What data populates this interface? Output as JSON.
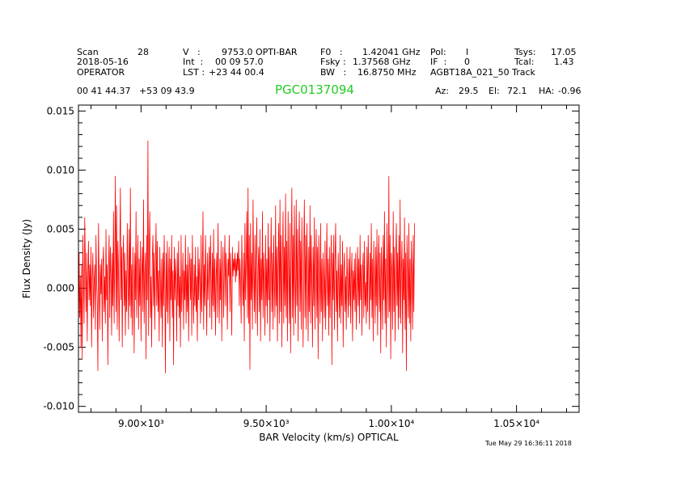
{
  "header": {
    "scan_label": "Scan",
    "scan_value": "28",
    "date": "2018-05-16",
    "operator": "OPERATOR",
    "v_label": "V   :",
    "v_value": "9753.0 OPTI-BAR",
    "int_label": "Int  :",
    "int_value": "00 09 57.0",
    "lst_label": "LST :",
    "lst_value": "+23 44 00.4",
    "f0_label": "F0   :",
    "f0_value": "1.42041 GHz",
    "fsky_label": "Fsky :",
    "fsky_value": "1.37568 GHz",
    "bw_label": "BW   :",
    "bw_value": "16.8750 MHz",
    "pol_label": "Pol:",
    "pol_value": "I",
    "if_label": "IF  :",
    "if_value": "0",
    "project": "AGBT18A_021_50 Track",
    "tsys_label": "Tsys:",
    "tsys_value": "17.05",
    "tcal_label": "Tcal:",
    "tcal_value": "1.43",
    "coords": "00 41 44.37   +53 09 43.9",
    "source": "PGC0137094",
    "az_label": "Az:",
    "az_value": "29.5",
    "el_label": "El:",
    "el_value": "72.1",
    "ha_label": "HA:",
    "ha_value": "-0.96"
  },
  "timestamp": "Tue May 29 16:36:11 2018",
  "chart_data": {
    "type": "line",
    "title": "PGC0137094",
    "xlabel": "BAR Velocity (km/s) OPTICAL",
    "ylabel": "Flux Density (Jy)",
    "xlim": [
      8750,
      10750
    ],
    "ylim": [
      -0.0105,
      0.0155
    ],
    "xticks": [
      9000,
      9500,
      10000,
      10500
    ],
    "xtick_labels": [
      "9.00×10³",
      "9.50×10³",
      "1.00×10⁴",
      "1.05×10⁴"
    ],
    "yticks": [
      -0.01,
      -0.005,
      0.0,
      0.005,
      0.01,
      0.015
    ],
    "ytick_labels": [
      "-0.010",
      "-0.005",
      "0.000",
      "0.005",
      "0.010",
      "0.015"
    ],
    "line_color": "#ff0000",
    "series": [
      {
        "name": "spectrum",
        "x_start": 8750,
        "x_step": 2.5,
        "values": [
          -0.004,
          0.003,
          -0.0025,
          0.001,
          -0.005,
          0.002,
          -0.006,
          0.0045,
          0.001,
          -0.003,
          0.006,
          0.0025,
          -0.002,
          0.003,
          -0.0045,
          0.0005,
          0.004,
          -0.001,
          0.002,
          -0.0015,
          0.0035,
          -0.005,
          0.001,
          0.003,
          -0.0025,
          0.0005,
          0.002,
          -0.0035,
          0.0045,
          0.0005,
          -0.001,
          -0.007,
          0.0055,
          0.001,
          -0.0035,
          0.002,
          -0.0005,
          0.0025,
          -0.0045,
          0.002,
          0.0035,
          -0.002,
          0.001,
          -0.003,
          0.005,
          -0.001,
          0.002,
          -0.0065,
          0.0015,
          0.0045,
          -0.0025,
          0.0035,
          0.001,
          -0.004,
          0.003,
          -0.0015,
          0.0065,
          -0.003,
          0.0025,
          0.0095,
          -0.002,
          0.007,
          -0.0035,
          0.004,
          0.0015,
          -0.0045,
          0.003,
          0.0085,
          -0.001,
          0.0035,
          -0.005,
          0.002,
          0.0045,
          -0.0015,
          0.003,
          -0.004,
          0.0015,
          -0.002,
          0.0055,
          0.001,
          -0.0035,
          0.005,
          -0.0015,
          0.0085,
          -0.0025,
          0.002,
          -0.004,
          0.0035,
          0.0005,
          -0.0055,
          0.003,
          -0.001,
          0.0065,
          -0.0025,
          0.0015,
          0.0045,
          -0.0035,
          0.0025,
          -0.0015,
          0.004,
          -0.0045,
          0.001,
          0.0035,
          -0.002,
          0.0075,
          -0.003,
          0.001,
          0.003,
          -0.006,
          0.0045,
          -0.001,
          0.0125,
          -0.004,
          0.0035,
          0.0065,
          -0.0025,
          0.001,
          -0.005,
          0.0025,
          0.0045,
          -0.0015,
          0.003,
          -0.0035,
          0.002,
          0.0055,
          -0.0015,
          0.004,
          -0.002,
          0.0015,
          -0.0045,
          0.0035,
          0.0005,
          -0.0025,
          0.0025,
          -0.005,
          0.003,
          -0.0015,
          0.0045,
          0.0005,
          -0.0072,
          0.003,
          -0.002,
          0.004,
          -0.003,
          0.001,
          0.0035,
          -0.0045,
          0.0025,
          -0.001,
          0.0045,
          -0.0025,
          0.0015,
          -0.0065,
          0.0035,
          -0.001,
          0.0025,
          0.0005,
          -0.0045,
          0.003,
          -0.0015,
          0.004,
          -0.0025,
          0.001,
          -0.005,
          0.0045,
          -0.002,
          0.0005,
          0.003,
          -0.0035,
          0.0015,
          -0.001,
          0.0045,
          -0.003,
          0.002,
          -0.002,
          0.0035,
          -0.0045,
          0.0015,
          0.003,
          -0.001,
          0.0025,
          -0.004,
          0.0045,
          0.0005,
          -0.003,
          0.002,
          -0.0015,
          0.0035,
          -0.002,
          0.001,
          -0.0045,
          0.0035,
          -0.001,
          0.0025,
          0.0005,
          -0.003,
          0.0045,
          -0.002,
          0.001,
          0.0065,
          -0.0035,
          0.002,
          -0.0015,
          0.0045,
          0.0005,
          -0.004,
          0.003,
          -0.001,
          0.0015,
          0.0035,
          -0.0025,
          0.0045,
          0.001,
          -0.0035,
          0.003,
          -0.0015,
          0.005,
          -0.002,
          0.0025,
          -0.004,
          0.001,
          0.003,
          -0.0025,
          0.0055,
          0.0005,
          -0.003,
          0.0025,
          -0.001,
          0.004,
          -0.0045,
          0.0015,
          0.0035,
          -0.0025,
          0.0015,
          0.0045,
          -0.0015,
          0.003,
          0.0005,
          -0.0035,
          0.0025,
          0.001,
          0.0045,
          -0.002,
          0.003,
          0.0005,
          -0.004,
          0.0035,
          0.001,
          0.0025,
          0.0015,
          0.003,
          0.0005,
          0.0025,
          0.001,
          0.003,
          0.0015,
          0.004,
          -0.0015,
          0.0025,
          0.0005,
          -0.003,
          0.0045,
          0.001,
          -0.0015,
          0.003,
          -0.0045,
          0.0055,
          -0.001,
          0.0025,
          0.0065,
          -0.0025,
          0.0085,
          -0.003,
          0.0045,
          -0.0069,
          0.0055,
          -0.001,
          0.003,
          -0.0035,
          0.0075,
          0.0015,
          -0.002,
          0.0045,
          -0.003,
          0.0025,
          0.006,
          -0.004,
          0.0015,
          0.0035,
          -0.002,
          0.005,
          -0.0045,
          0.0025,
          -0.001,
          0.0065,
          -0.0025,
          0.003,
          0.0005,
          -0.004,
          0.0045,
          -0.0015,
          0.0025,
          -0.003,
          0.0055,
          -0.001,
          0.0035,
          -0.0045,
          0.0015,
          0.006,
          -0.002,
          0.003,
          -0.0035,
          0.0045,
          0.0005,
          -0.0025,
          0.007,
          -0.0015,
          0.0035,
          -0.0045,
          0.002,
          0.0055,
          -0.003,
          0.0075,
          -0.002,
          0.0045,
          -0.005,
          0.0025,
          0.0065,
          -0.003,
          0.0035,
          -0.0015,
          0.008,
          -0.0025,
          0.004,
          -0.0045,
          0.0065,
          0.0015,
          -0.003,
          0.0055,
          -0.0055,
          0.0025,
          0.0085,
          -0.0025,
          0.0045,
          -0.004,
          0.007,
          0.001,
          -0.003,
          0.0075,
          -0.0015,
          0.005,
          -0.0045,
          0.003,
          0.0065,
          -0.002,
          0.004,
          -0.0035,
          0.006,
          0.0005,
          -0.005,
          0.0035,
          0.0075,
          -0.0025,
          0.0045,
          -0.0035,
          0.0055,
          0.001,
          -0.0045,
          0.0035,
          -0.002,
          0.007,
          -0.003,
          0.0045,
          0.0005,
          -0.005,
          0.0035,
          -0.0015,
          0.006,
          -0.0035,
          0.002,
          0.005,
          -0.0025,
          0.0035,
          -0.006,
          0.0045,
          0.0015,
          -0.003,
          0.0055,
          -0.002,
          0.0025,
          -0.0045,
          0.003,
          0.0005,
          -0.0025,
          0.004,
          -0.0035,
          0.0015,
          0.0055,
          -0.0015,
          0.0025,
          -0.004,
          0.0035,
          -0.0025,
          0.0015,
          0.0045,
          -0.0065,
          0.003,
          -0.001,
          0.0045,
          -0.0035,
          0.0025,
          0.0055,
          -0.002,
          0.0015,
          -0.0045,
          0.003,
          0.0005,
          -0.0025,
          0.0045,
          -0.003,
          0.002,
          -0.0015,
          0.004,
          -0.005,
          0.0015,
          0.003,
          -0.002,
          0.001,
          -0.0035,
          0.0035,
          0.0005,
          -0.0025,
          0.0025,
          -0.0015,
          0.0035,
          -0.003,
          0.001,
          0.003,
          -0.0045,
          0.0015,
          -0.001,
          0.0025,
          -0.002,
          0.003,
          -0.0035,
          0.0005,
          0.0035,
          -0.0015,
          0.0025,
          -0.003,
          0.0045,
          -0.001,
          0.002,
          -0.004,
          0.0015,
          0.003,
          -0.0025,
          0.004,
          -0.0015,
          0.0005,
          -0.003,
          0.0035,
          -0.002,
          0.0045,
          0.0005,
          -0.0035,
          0.003,
          -0.001,
          0.0055,
          -0.0025,
          0.0025,
          -0.0045,
          0.004,
          0.001,
          -0.003,
          0.0035,
          -0.0015,
          0.005,
          -0.004,
          0.002,
          0.0045,
          -0.002,
          0.003,
          -0.0055,
          0.0035,
          0.001,
          -0.0035,
          0.0045,
          -0.001,
          0.0065,
          -0.003,
          0.0025,
          -0.005,
          0.0055,
          0.0015,
          -0.0025,
          0.0095,
          -0.002,
          0.0045,
          -0.006,
          0.003,
          0.0015,
          -0.0035,
          0.0065,
          -0.002,
          0.0035,
          -0.0045,
          0.0025,
          0.0055,
          -0.0015,
          0.003,
          -0.0035,
          0.0045,
          -0.0025,
          0.0075,
          -0.003,
          0.0015,
          0.004,
          -0.0055,
          0.0025,
          -0.001,
          0.006,
          -0.0035,
          0.003,
          -0.007,
          0.0045,
          0.0015,
          -0.0025,
          0.0055,
          -0.003,
          0.0025,
          -0.0045,
          0.004,
          0.001,
          -0.0035,
          0.0045,
          -0.002,
          0.0055
        ]
      }
    ]
  }
}
